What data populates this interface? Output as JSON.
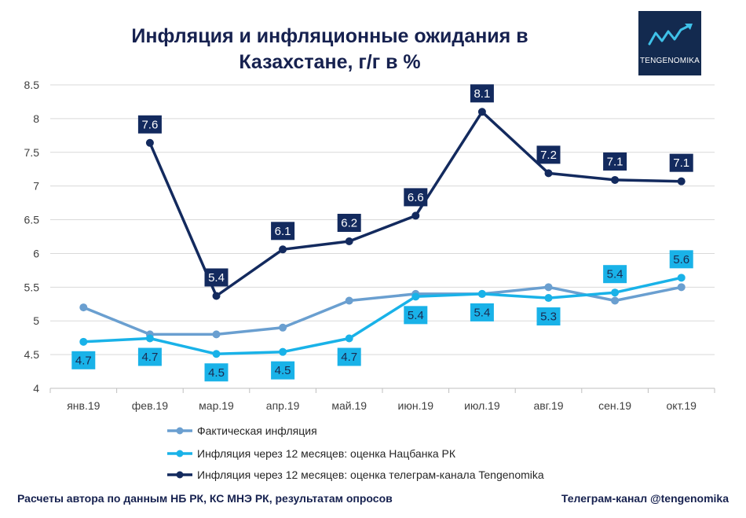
{
  "header": {
    "title_line1": "Инфляция и инфляционные ожидания в",
    "title_line2": "Казахстане, г/г в %"
  },
  "logo": {
    "text": "TENGENOMIKA",
    "icon": "trend-arrow-icon"
  },
  "footer": {
    "left": "Расчеты автора по данным НБ РК, КС МНЭ РК, результатам опросов",
    "right": "Телеграм-канал @tengenomika"
  },
  "chart_data": {
    "type": "line",
    "title": "Инфляция и инфляционные ожидания в Казахстане, г/г в %",
    "categories": [
      "янв.19",
      "фев.19",
      "мар.19",
      "апр.19",
      "май.19",
      "июн.19",
      "июл.19",
      "авг.19",
      "сен.19",
      "окт.19"
    ],
    "ylim": [
      4,
      8.5
    ],
    "yticks": [
      "4",
      "4.5",
      "5",
      "5.5",
      "6",
      "6.5",
      "7",
      "7.5",
      "8",
      "8.5"
    ],
    "grid": true,
    "legend_position": "bottom",
    "series": [
      {
        "name": "Фактическая инфляция",
        "color": "#6a9fd0",
        "values": [
          5.2,
          4.8,
          4.8,
          4.9,
          5.3,
          5.4,
          5.4,
          5.5,
          5.3,
          5.5
        ],
        "labels": [
          null,
          null,
          null,
          null,
          null,
          null,
          null,
          null,
          null,
          null
        ]
      },
      {
        "name": "Инфляция через 12 месяцев: оценка Нацбанка РК",
        "color": "#19b2e8",
        "values": [
          4.69,
          4.74,
          4.51,
          4.54,
          4.74,
          5.36,
          5.4,
          5.34,
          5.42,
          5.64
        ],
        "labels": [
          "4.7",
          "4.7",
          "4.5",
          "4.5",
          "4.7",
          "5.4",
          "5.4",
          "5.3",
          "5.4",
          "5.6"
        ],
        "label_pos": [
          "below",
          "below",
          "below",
          "below",
          "below",
          "below",
          "below",
          "below",
          "above",
          "above"
        ]
      },
      {
        "name": "Инфляция через 12 месяцев: оценка телеграм-канала Tengenomika",
        "color": "#132a5e",
        "values": [
          null,
          7.64,
          5.37,
          6.06,
          6.18,
          6.56,
          8.1,
          7.19,
          7.09,
          7.07
        ],
        "labels": [
          null,
          "7.6",
          "5.4",
          "6.1",
          "6.2",
          "6.6",
          "8.1",
          "7.2",
          "7.1",
          "7.1"
        ],
        "label_pos": [
          null,
          "above",
          "above",
          "above",
          "above",
          "above",
          "above",
          "above",
          "above",
          "above"
        ]
      }
    ]
  }
}
